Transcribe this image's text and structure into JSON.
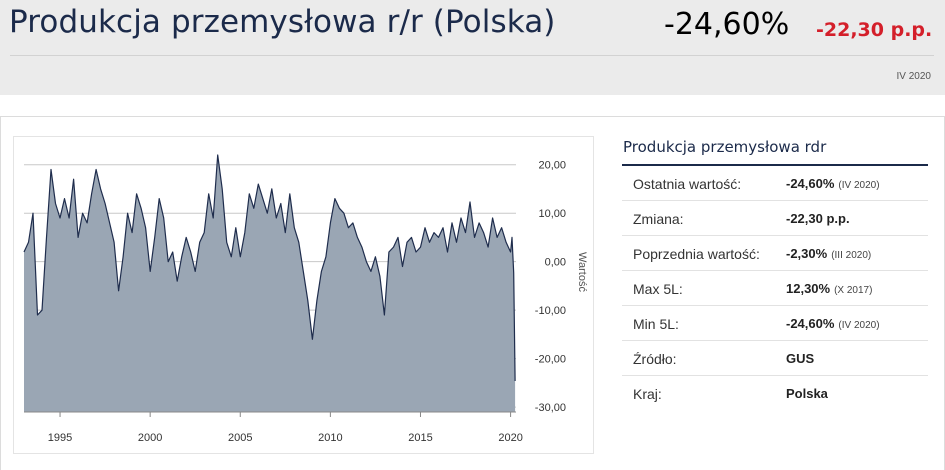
{
  "header": {
    "title": "Produkcja przemysłowa r/r (Polska)",
    "main_value": "-24,60%",
    "main_change": "-22,30 p.p.",
    "period": "IV 2020"
  },
  "info": {
    "title": "Produkcja przemysłowa rdr",
    "rows": [
      {
        "label": "Ostatnia wartość:",
        "value": "-24,60%",
        "sub": "(IV 2020)"
      },
      {
        "label": "Zmiana:",
        "value": "-22,30 p.p.",
        "sub": ""
      },
      {
        "label": "Poprzednia wartość:",
        "value": "-2,30%",
        "sub": "(III 2020)"
      },
      {
        "label": "Max 5L:",
        "value": "12,30%",
        "sub": "(X 2017)"
      },
      {
        "label": "Min 5L:",
        "value": "-24,60%",
        "sub": "(IV 2020)"
      },
      {
        "label": "Źródło:",
        "value": "GUS",
        "sub": ""
      },
      {
        "label": "Kraj:",
        "value": "Polska",
        "sub": ""
      }
    ]
  },
  "colors": {
    "area_fill": "#9aa6b4",
    "line": "#1f2d4d",
    "grid": "#c8c8c8"
  },
  "chart_data": {
    "type": "area",
    "title": "",
    "xlabel": "",
    "ylabel": "Wartość",
    "xlim": [
      1993.0,
      2020.3
    ],
    "ylim": [
      -31,
      22
    ],
    "yticks": [
      20,
      10,
      0,
      -10,
      -20,
      -30
    ],
    "ytick_labels": [
      "20,00",
      "10,00",
      "0,00",
      "-10,00",
      "-20,00",
      "-30,00"
    ],
    "xticks": [
      1995,
      2000,
      2005,
      2010,
      2015,
      2020
    ],
    "xtick_labels": [
      "1995",
      "2000",
      "2005",
      "2010",
      "2015",
      "2020"
    ],
    "grid": true,
    "series": [
      {
        "x": [
          1993.0,
          1993.25,
          1993.5,
          1993.75,
          1994.0,
          1994.25,
          1994.5,
          1994.75,
          1995.0,
          1995.25,
          1995.5,
          1995.75,
          1996.0,
          1996.25,
          1996.5,
          1996.75,
          1997.0,
          1997.25,
          1997.5,
          1997.75,
          1998.0,
          1998.25,
          1998.5,
          1998.75,
          1999.0,
          1999.25,
          1999.5,
          1999.75,
          2000.0,
          2000.25,
          2000.5,
          2000.75,
          2001.0,
          2001.25,
          2001.5,
          2001.75,
          2002.0,
          2002.25,
          2002.5,
          2002.75,
          2003.0,
          2003.25,
          2003.5,
          2003.75,
          2004.0,
          2004.25,
          2004.5,
          2004.75,
          2005.0,
          2005.25,
          2005.5,
          2005.75,
          2006.0,
          2006.25,
          2006.5,
          2006.75,
          2007.0,
          2007.25,
          2007.5,
          2007.75,
          2008.0,
          2008.25,
          2008.5,
          2008.75,
          2009.0,
          2009.25,
          2009.5,
          2009.75,
          2010.0,
          2010.25,
          2010.5,
          2010.75,
          2011.0,
          2011.25,
          2011.5,
          2011.75,
          2012.0,
          2012.25,
          2012.5,
          2012.75,
          2013.0,
          2013.25,
          2013.5,
          2013.75,
          2014.0,
          2014.25,
          2014.5,
          2014.75,
          2015.0,
          2015.25,
          2015.5,
          2015.75,
          2016.0,
          2016.25,
          2016.5,
          2016.75,
          2017.0,
          2017.25,
          2017.5,
          2017.75,
          2018.0,
          2018.25,
          2018.5,
          2018.75,
          2019.0,
          2019.25,
          2019.5,
          2019.75,
          2020.0,
          2020.08,
          2020.17,
          2020.25
        ],
        "y": [
          2,
          4,
          10,
          -11,
          -10,
          5,
          19,
          12,
          9,
          13,
          9,
          17,
          5,
          10,
          8,
          14,
          19,
          15,
          12,
          8,
          4,
          -6,
          1,
          10,
          6,
          14,
          11,
          7,
          -2,
          5,
          13,
          9,
          0,
          2,
          -4,
          1,
          5,
          2,
          -2,
          4,
          6,
          14,
          9,
          22,
          15,
          4,
          1,
          7,
          1,
          6,
          14,
          11,
          16,
          13,
          10,
          15,
          9,
          12,
          6,
          14,
          7,
          4,
          -2,
          -8,
          -16,
          -8,
          -2,
          1,
          8,
          13,
          11,
          10,
          7,
          8,
          5,
          3,
          0,
          -2,
          1,
          -3,
          -11,
          2,
          3,
          5,
          -1,
          4,
          5,
          2,
          3,
          7,
          4,
          6,
          5,
          7,
          2,
          8,
          4,
          9,
          6,
          12.3,
          5,
          8,
          6,
          3,
          9,
          5,
          7,
          4,
          2,
          5,
          -2.3,
          -24.6
        ]
      }
    ]
  }
}
